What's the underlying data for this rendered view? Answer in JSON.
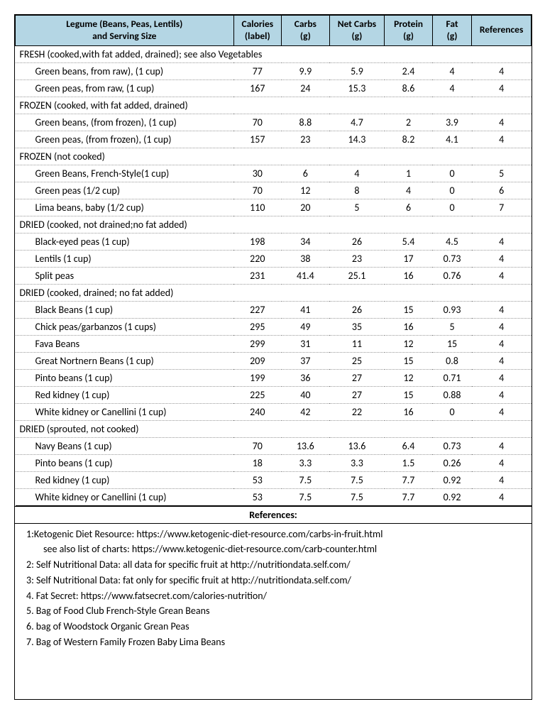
{
  "headers": {
    "name_l1": "Legume (Beans, Peas, Lentils)",
    "name_l2": "and Serving Size",
    "cal_l1": "Calories",
    "cal_l2": "(label)",
    "carb_l1": "Carbs",
    "carb_l2": "(g)",
    "net_l1": "Net Carbs",
    "net_l2": "(g)",
    "prot_l1": "Protein",
    "prot_l2": "(g)",
    "fat_l1": "Fat",
    "fat_l2": "(g)",
    "ref": "References"
  },
  "groups": [
    {
      "title": "FRESH (cooked,with fat added, drained); see also Vegetables",
      "rows": [
        {
          "name": "Green beans, from raw), (1 cup)",
          "cal": "77",
          "carb": "9.9",
          "net": "5.9",
          "prot": "2.4",
          "fat": "4",
          "ref": "4"
        },
        {
          "name": "Green peas, from raw, (1 cup)",
          "cal": "167",
          "carb": "24",
          "net": "15.3",
          "prot": "8.6",
          "fat": "4",
          "ref": "4"
        }
      ]
    },
    {
      "title": "FROZEN (cooked, with fat added, drained)",
      "rows": [
        {
          "name": "Green beans, (from frozen), (1 cup)",
          "cal": "70",
          "carb": "8.8",
          "net": "4.7",
          "prot": "2",
          "fat": "3.9",
          "ref": "4"
        },
        {
          "name": "Green peas, (from frozen), (1 cup)",
          "cal": "157",
          "carb": "23",
          "net": "14.3",
          "prot": "8.2",
          "fat": "4.1",
          "ref": "4"
        }
      ]
    },
    {
      "title": "FROZEN (not cooked)",
      "rows": [
        {
          "name": "Green Beans, French-Style(1 cup)",
          "cal": "30",
          "carb": "6",
          "net": "4",
          "prot": "1",
          "fat": "0",
          "ref": "5"
        },
        {
          "name": "Green peas (1/2 cup)",
          "cal": "70",
          "carb": "12",
          "net": "8",
          "prot": "4",
          "fat": "0",
          "ref": "6"
        },
        {
          "name": "Lima beans, baby (1/2 cup)",
          "cal": "110",
          "carb": "20",
          "net": "5",
          "prot": "6",
          "fat": "0",
          "ref": "7"
        }
      ]
    },
    {
      "title": "DRIED (cooked, not drained;no fat added)",
      "rows": [
        {
          "name": "Black-eyed peas (1 cup)",
          "cal": "198",
          "carb": "34",
          "net": "26",
          "prot": "5.4",
          "fat": "4.5",
          "ref": "4"
        },
        {
          "name": "Lentils (1 cup)",
          "cal": "220",
          "carb": "38",
          "net": "23",
          "prot": "17",
          "fat": "0.73",
          "ref": "4"
        },
        {
          "name": "Split peas",
          "cal": "231",
          "carb": "41.4",
          "net": "25.1",
          "prot": "16",
          "fat": "0.76",
          "ref": "4"
        }
      ]
    },
    {
      "title": "DRIED (cooked, drained; no fat added)",
      "rows": [
        {
          "name": "Black Beans (1 cup)",
          "cal": "227",
          "carb": "41",
          "net": "26",
          "prot": "15",
          "fat": "0.93",
          "ref": "4"
        },
        {
          "name": "Chick peas/garbanzos (1 cups)",
          "cal": "295",
          "carb": "49",
          "net": "35",
          "prot": "16",
          "fat": "5",
          "ref": "4"
        },
        {
          "name": "Fava Beans",
          "cal": "299",
          "carb": "31",
          "net": "11",
          "prot": "12",
          "fat": "15",
          "ref": "4"
        },
        {
          "name": "Great Nortnern Beans (1 cup)",
          "cal": "209",
          "carb": "37",
          "net": "25",
          "prot": "15",
          "fat": "0.8",
          "ref": "4"
        },
        {
          "name": "Pinto beans (1 cup)",
          "cal": "199",
          "carb": "36",
          "net": "27",
          "prot": "12",
          "fat": "0.71",
          "ref": "4"
        },
        {
          "name": "Red kidney (1 cup)",
          "cal": "225",
          "carb": "40",
          "net": "27",
          "prot": "15",
          "fat": "0.88",
          "ref": "4"
        },
        {
          "name": "White kidney or Canellini (1 cup)",
          "cal": "240",
          "carb": "42",
          "net": "22",
          "prot": "16",
          "fat": "0",
          "ref": "4"
        }
      ]
    },
    {
      "title": "DRIED (sprouted, not cooked)",
      "rows": [
        {
          "name": "Navy Beans (1 cup)",
          "cal": "70",
          "carb": "13.6",
          "net": "13.6",
          "prot": "6.4",
          "fat": "0.73",
          "ref": "4"
        },
        {
          "name": "Pinto beans (1 cup)",
          "cal": "18",
          "carb": "3.3",
          "net": "3.3",
          "prot": "1.5",
          "fat": "0.26",
          "ref": "4"
        },
        {
          "name": "Red kidney (1 cup)",
          "cal": "53",
          "carb": "7.5",
          "net": "7.5",
          "prot": "7.7",
          "fat": "0.92",
          "ref": "4"
        },
        {
          "name": "White kidney or Canellini (1 cup)",
          "cal": "53",
          "carb": "7.5",
          "net": "7.5",
          "prot": "7.7",
          "fat": "0.92",
          "ref": "4"
        }
      ]
    }
  ],
  "references_title": "References:",
  "references": [
    {
      "text": "1:Ketogenic Diet Resource: https://www.ketogenic-diet-resource.com/carbs-in-fruit.html"
    },
    {
      "text": "see also list of charts: https://www.ketogenic-diet-resource.com/carb-counter.html",
      "sub": true
    },
    {
      "text": "2: Self Nutritional Data: all data for specific fruit at http://nutritiondata.self.com/"
    },
    {
      "text": "3: Self Nutritional Data: fat only for specific fruit at http://nutritiondata.self.com/"
    },
    {
      "text": "4. Fat Secret: https://www.fatsecret.com/calories-nutrition/"
    },
    {
      "text": "5. Bag of Food Club French-Style Grean Beans"
    },
    {
      "text": "6. bag of Woodstock Organic Grean Peas"
    },
    {
      "text": "7. Bag of Western Family Frozen Baby Lima Beans"
    }
  ]
}
